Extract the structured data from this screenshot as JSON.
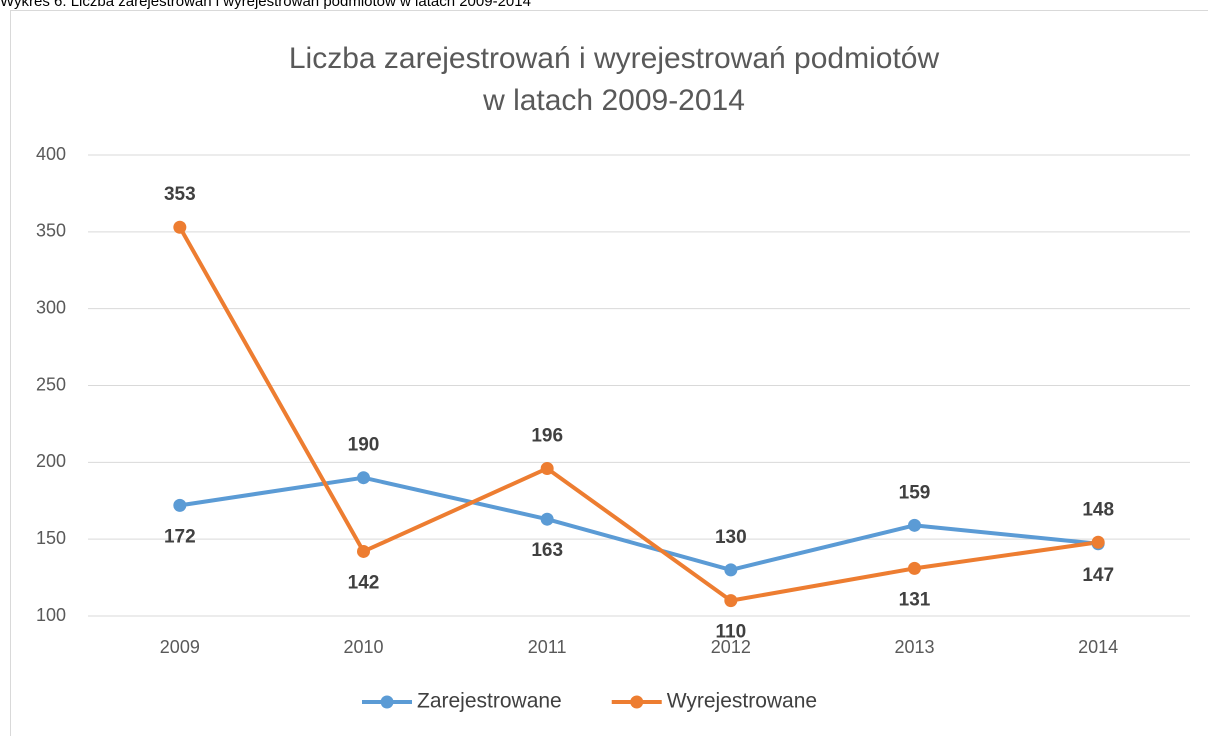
{
  "caption": "Wykres 6. Liczba zarejestrowań i wyrejestrowań podmiotów w latach 2009-2014",
  "chart_data": {
    "type": "line",
    "title": [
      "Liczba zarejestrowań i wyrejestrowań podmiotów",
      "w latach 2009-2014"
    ],
    "categories": [
      "2009",
      "2010",
      "2011",
      "2012",
      "2013",
      "2014"
    ],
    "series": [
      {
        "name": "Zarejestrowane",
        "color": "#5b9bd5",
        "values": [
          172,
          190,
          163,
          130,
          159,
          147
        ]
      },
      {
        "name": "Wyrejestrowane",
        "color": "#ed7d31",
        "values": [
          353,
          142,
          196,
          110,
          131,
          148
        ]
      }
    ],
    "ylim": [
      100,
      400
    ],
    "yticks": [
      100,
      150,
      200,
      250,
      300,
      350,
      400
    ],
    "grid": true,
    "legend": "bottom"
  }
}
